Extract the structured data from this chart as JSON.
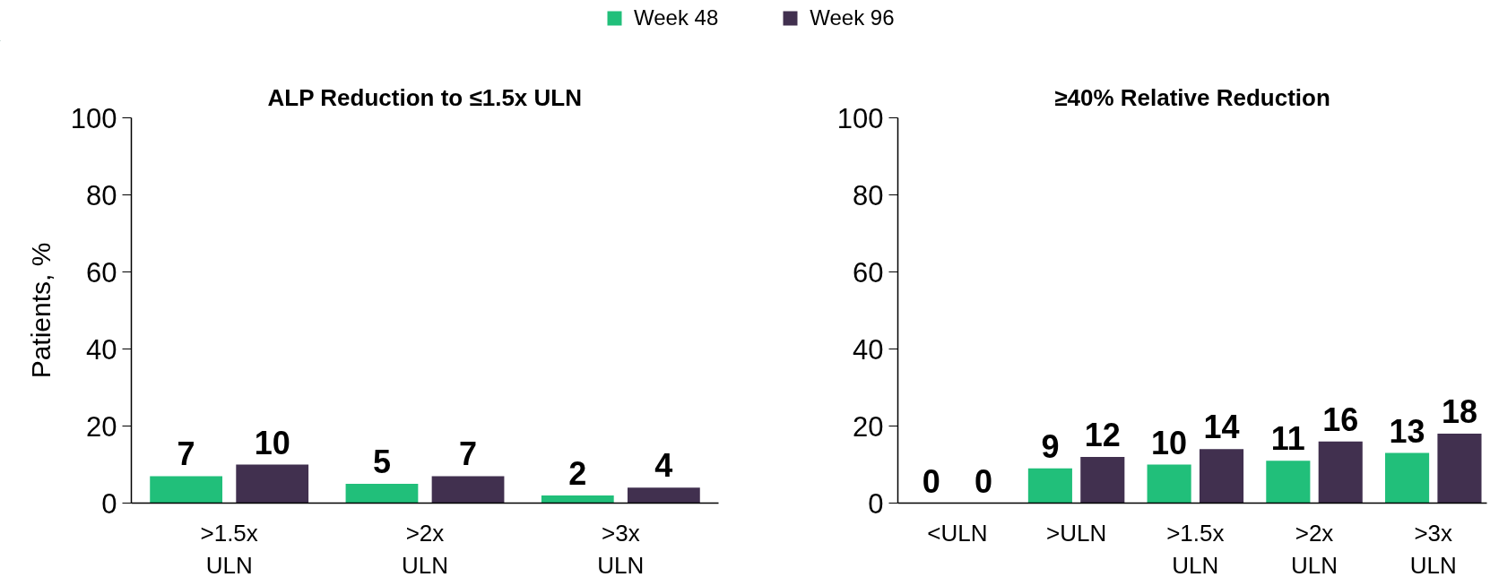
{
  "chart_data": [
    {
      "type": "bar",
      "title": "ALP Reduction to ≤1.5x ULN",
      "ylabel": "Patients, %",
      "categories": [
        ">1.5x\nULN",
        ">2x\nULN",
        ">3x\nULN"
      ],
      "series": [
        {
          "name": "Week 48",
          "color": "#21bf7a",
          "values": [
            7,
            5,
            2
          ]
        },
        {
          "name": "Week 96",
          "color": "#41304f",
          "values": [
            10,
            7,
            4
          ]
        }
      ],
      "ylim": [
        0,
        100
      ],
      "yticks": [
        0,
        20,
        40,
        60,
        80,
        100
      ],
      "data_labels": true,
      "legend": "top",
      "grid": false
    },
    {
      "type": "bar",
      "title": "≥40% Relative Reduction",
      "categories": [
        "<ULN",
        ">ULN",
        ">1.5x\nULN",
        ">2x\nULN",
        ">3x\nULN"
      ],
      "series": [
        {
          "color": "#21bf7a",
          "values": [
            0,
            9,
            10,
            11,
            13
          ]
        },
        {
          "color": "#41304f",
          "values": [
            0,
            12,
            14,
            16,
            18
          ]
        }
      ],
      "ylim": [
        0,
        100
      ],
      "yticks": [
        0,
        20,
        40,
        60,
        80,
        100
      ],
      "data_labels": true,
      "grid": false
    }
  ]
}
